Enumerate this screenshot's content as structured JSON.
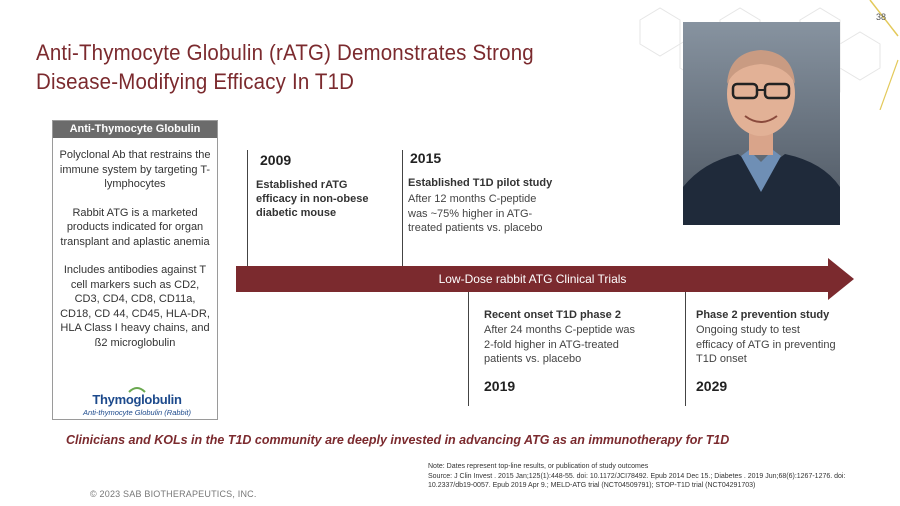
{
  "page": {
    "number": "38",
    "title_line1": "Anti-Thymocyte Globulin (rATG) Demonstrates Strong",
    "title_line2": "Disease-Modifying Efficacy In T1D"
  },
  "atg_box": {
    "header": "Anti-Thymocyte Globulin",
    "para1": "Polyclonal Ab that restrains the immune system by targeting T-lymphocytes",
    "para2": "Rabbit ATG is a marketed products indicated for organ transplant and aplastic anemia",
    "para3": "Includes antibodies against T cell markers such as CD2, CD3, CD4, CD8, CD11a, CD18, CD 44, CD45, HLA-DR, HLA Class I heavy chains, and ß2 microglobulin",
    "logo_name": "Thymoglobulin",
    "logo_sub": "Anti-thymocyte Globulin (Rabbit)"
  },
  "timeline": {
    "arrow_label": "Low-Dose rabbit ATG Clinical Trials",
    "events": [
      {
        "year": "2009",
        "title": "Established rATG efficacy in non-obese diabetic mouse",
        "body": ""
      },
      {
        "year": "2015",
        "title": "Established T1D pilot study",
        "body": "After 12 months C-peptide was ~75% higher in ATG-treated patients vs. placebo"
      },
      {
        "year": "2019",
        "title": "Recent onset T1D phase 2",
        "body": "After 24 months C-peptide was 2-fold higher in ATG-treated patients vs. placebo"
      },
      {
        "year": "2029",
        "title": "Phase 2 prevention study",
        "body": "Ongoing study to test efficacy of ATG in preventing T1D onset"
      }
    ]
  },
  "footer": {
    "tagline": "Clinicians and KOLs in the T1D community are deeply invested in advancing ATG as an immunotherapy for T1D",
    "note_line1": "Note: Dates represent top-line results, or publication of study outcomes",
    "note_line2": "Source: J Clin Invest . 2015 Jan;125(1):448-55. doi: 10.1172/JCI78492. Epub 2014 Dec 15.; Diabetes . 2019 Jun;68(6):1267-1276. doi: 10.2337/db19-0057. Epub 2019 Apr 9.; MELD-ATG trial (NCT04509791); STOP-T1D trial (NCT04291703)",
    "copyright": "© 2023 SAB BIOTHERAPEUTICS, INC."
  },
  "colors": {
    "brand": "#7b2a2e",
    "gray_header": "#6b6b6b",
    "logo_blue": "#1d4a8c"
  }
}
